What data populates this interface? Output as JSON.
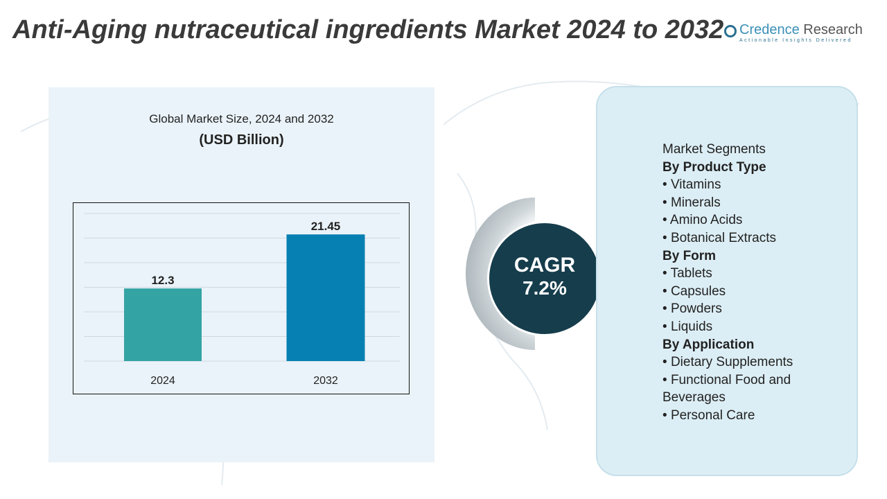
{
  "title": "Anti-Aging nutraceutical ingredients Market 2024 to 2032",
  "logo": {
    "brand_a": "Credence",
    "brand_b": "Research",
    "tagline": "Actionable Insights Delivered"
  },
  "chart_data": {
    "type": "bar",
    "title": "Global Market Size, 2024 and 2032",
    "ylabel": "(USD Billion)",
    "categories": [
      "2024",
      "2032"
    ],
    "values": [
      12.3,
      21.45
    ],
    "data_labels": [
      "12.3",
      "21.45"
    ],
    "colors": [
      "#34a3a4",
      "#0680b2"
    ],
    "ylim": [
      0,
      25
    ],
    "grid": true
  },
  "cagr": {
    "label": "CAGR",
    "value": "7.2%"
  },
  "segments": {
    "heading": "Market Segments",
    "groups": [
      {
        "title": "By Product Type",
        "items": [
          "Vitamins",
          "Minerals",
          "Amino Acids",
          "Botanical Extracts"
        ]
      },
      {
        "title": "By Form",
        "items": [
          "Tablets",
          "Capsules",
          "Powders",
          "Liquids"
        ]
      },
      {
        "title": "By Application",
        "items": [
          "Dietary Supplements",
          "Functional Food and Beverages",
          "Personal Care"
        ]
      }
    ]
  }
}
